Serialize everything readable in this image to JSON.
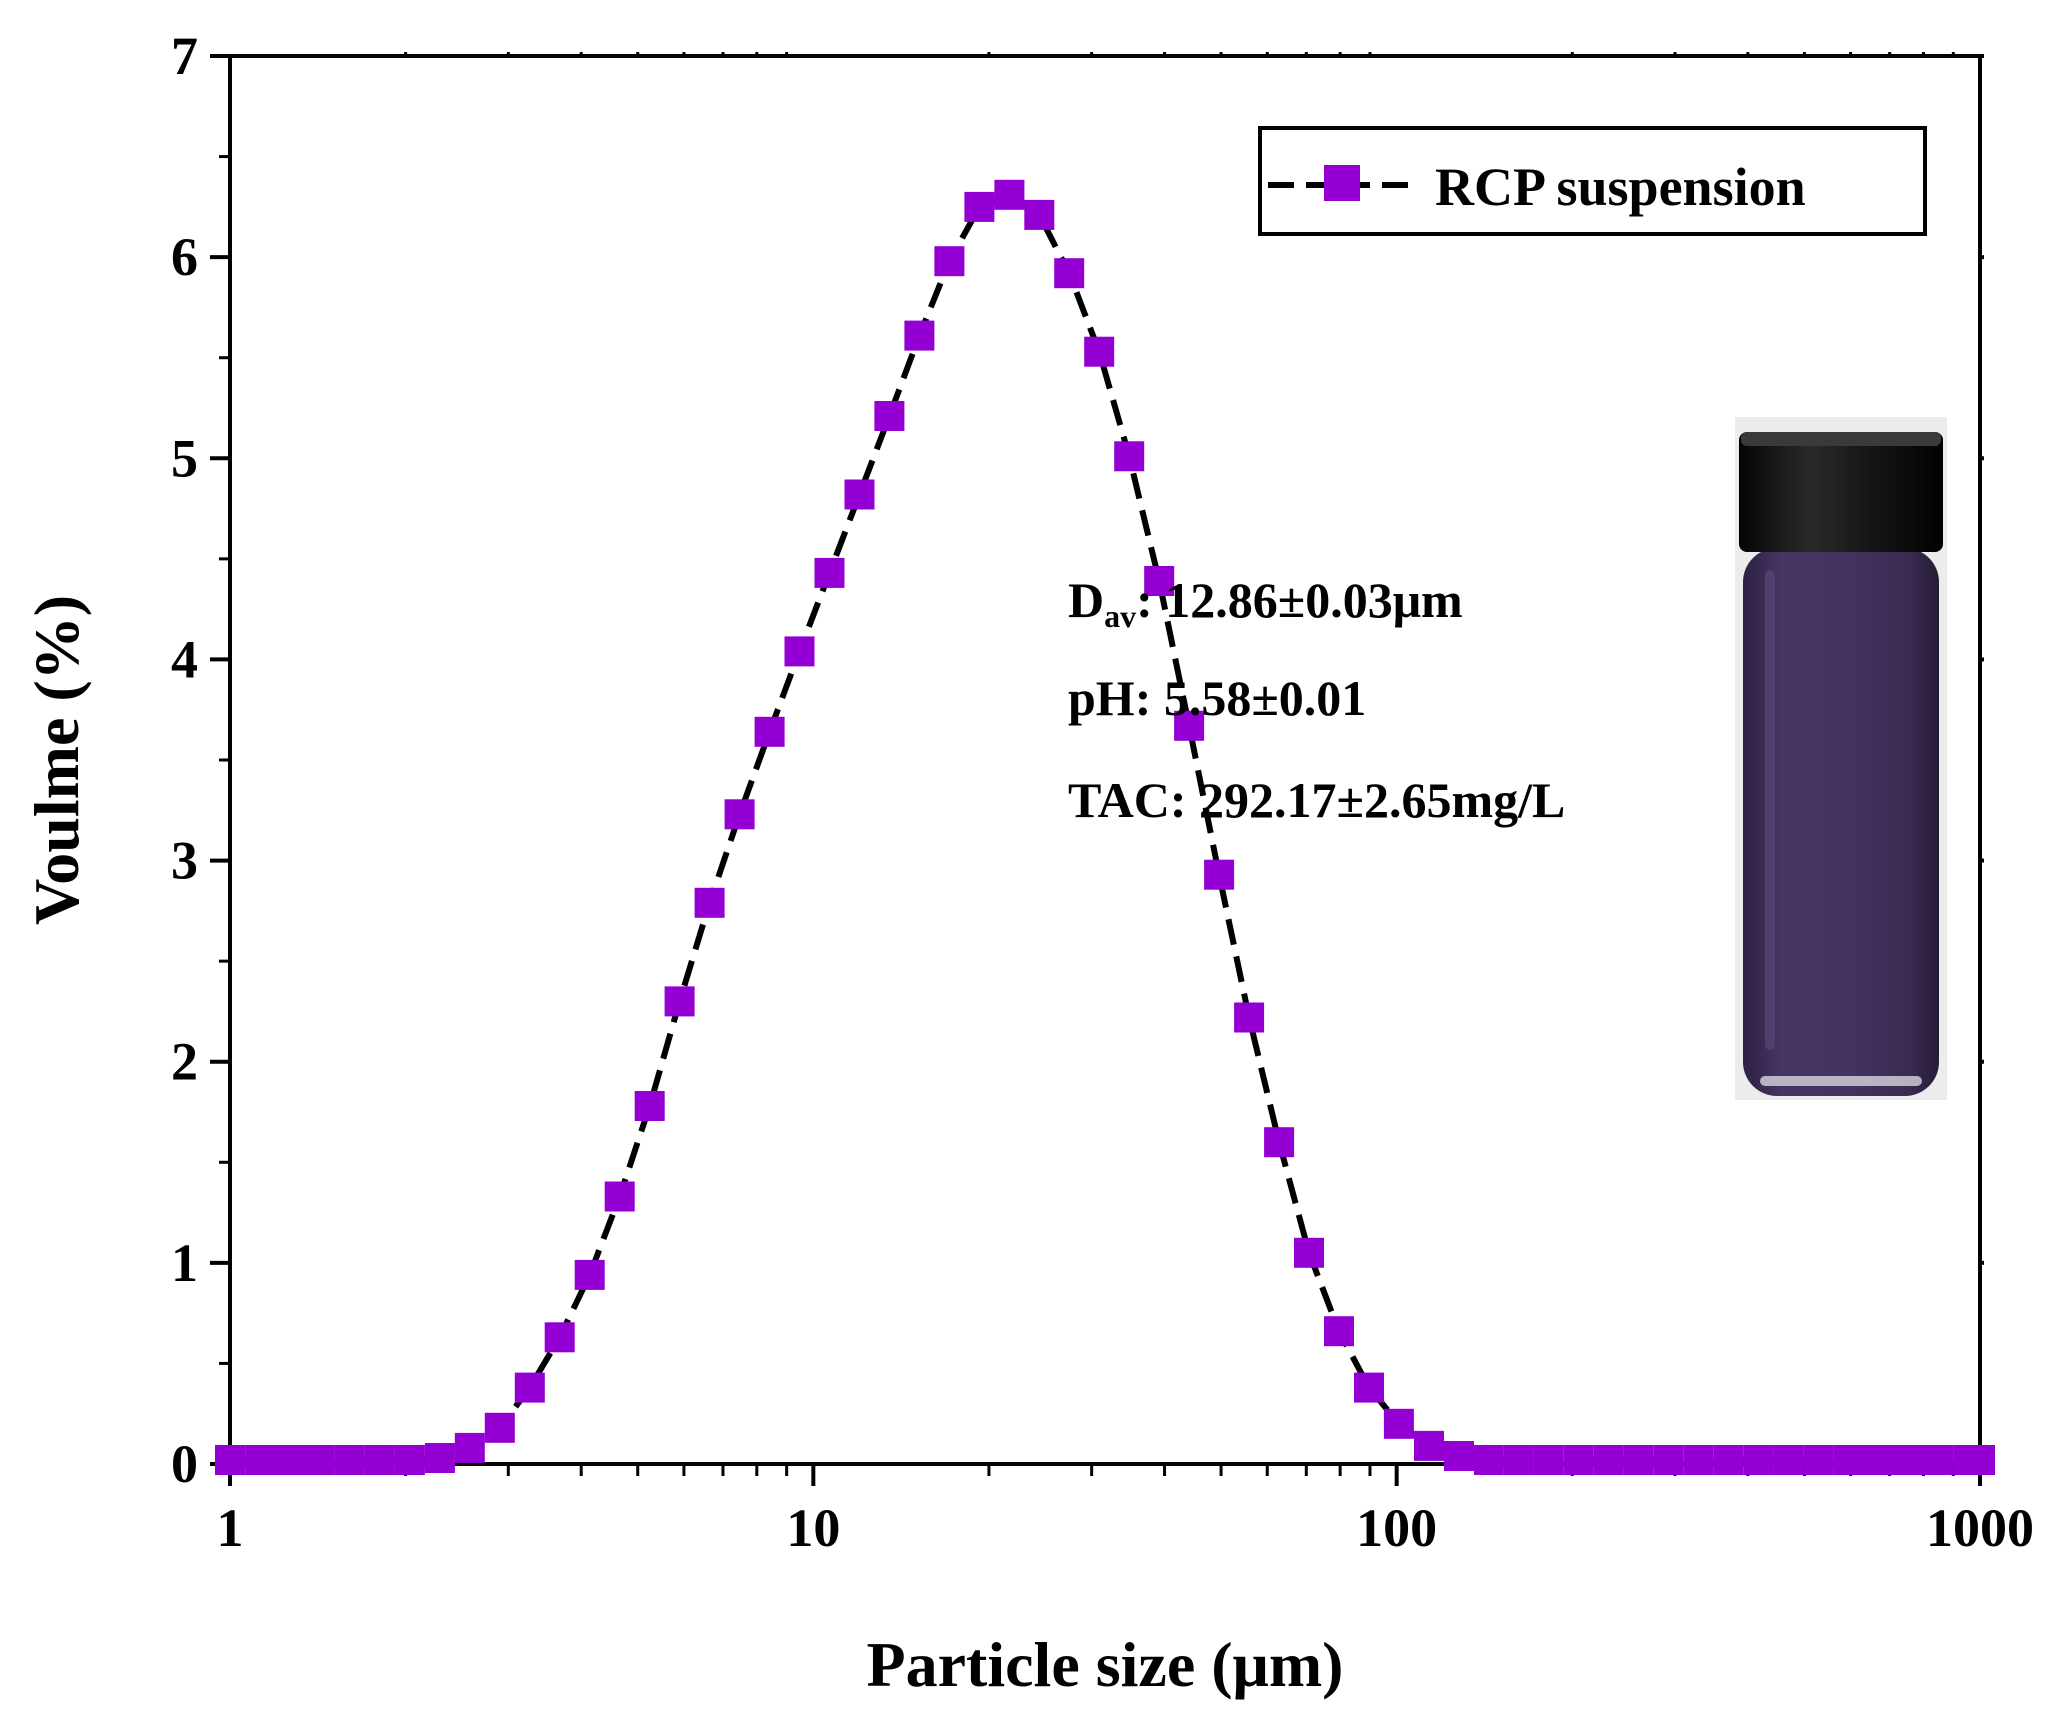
{
  "chart_data": {
    "type": "scatter",
    "xlabel": "Particle size (μm)",
    "ylabel": "Voulme (%)",
    "xscale": "log",
    "xlim": [
      1,
      1000
    ],
    "ylim": [
      0,
      7
    ],
    "x_ticks": [
      "1",
      "10",
      "100",
      "1000"
    ],
    "y_ticks": [
      "0",
      "1",
      "2",
      "3",
      "4",
      "5",
      "6",
      "7"
    ],
    "legend": {
      "position": "top-right"
    },
    "series": [
      {
        "name": "RCP suspension",
        "marker": "square",
        "marker_color": "#9400D3",
        "line_color": "#000000",
        "line_style": "dashed",
        "x": [
          1.0,
          1.126,
          1.267,
          1.426,
          1.605,
          1.807,
          2.034,
          2.29,
          2.577,
          2.901,
          3.265,
          3.675,
          4.137,
          4.656,
          5.241,
          5.899,
          6.64,
          7.474,
          8.413,
          9.469,
          10.66,
          12.0,
          13.5,
          15.2,
          17.11,
          19.26,
          21.68,
          24.4,
          27.46,
          30.91,
          34.79,
          39.16,
          44.08,
          49.62,
          55.85,
          62.87,
          70.76,
          79.65,
          89.65,
          100.9,
          113.6,
          127.9,
          143.9,
          162.0,
          182.3,
          205.2,
          231.0,
          260.0,
          292.7,
          329.4,
          370.8,
          417.4,
          469.8,
          528.8,
          595.2,
          669.9,
          754.0,
          848.7,
          955.3,
          1000.0
        ],
        "y": [
          0.02,
          0.02,
          0.02,
          0.02,
          0.02,
          0.02,
          0.02,
          0.03,
          0.08,
          0.18,
          0.38,
          0.63,
          0.94,
          1.33,
          1.78,
          2.3,
          2.79,
          3.23,
          3.64,
          4.04,
          4.43,
          4.82,
          5.21,
          5.61,
          5.98,
          6.25,
          6.31,
          6.21,
          5.92,
          5.53,
          5.01,
          4.39,
          3.67,
          2.93,
          2.22,
          1.6,
          1.05,
          0.66,
          0.38,
          0.2,
          0.09,
          0.04,
          0.02,
          0.02,
          0.02,
          0.02,
          0.02,
          0.02,
          0.02,
          0.02,
          0.02,
          0.02,
          0.02,
          0.02,
          0.02,
          0.02,
          0.02,
          0.02,
          0.02,
          0.02
        ]
      }
    ]
  },
  "annotations": {
    "dav_main": "D",
    "dav_sub": "av",
    "dav_value": ": 12.86±0.03μm",
    "ph": "pH: 5.58±0.01",
    "tac": "TAC: 292.17±2.65mg/L"
  },
  "inset_image": {
    "icon": "sample-vial-icon",
    "cap_color": "#111111",
    "liquid_color": "#3f2f5a"
  }
}
